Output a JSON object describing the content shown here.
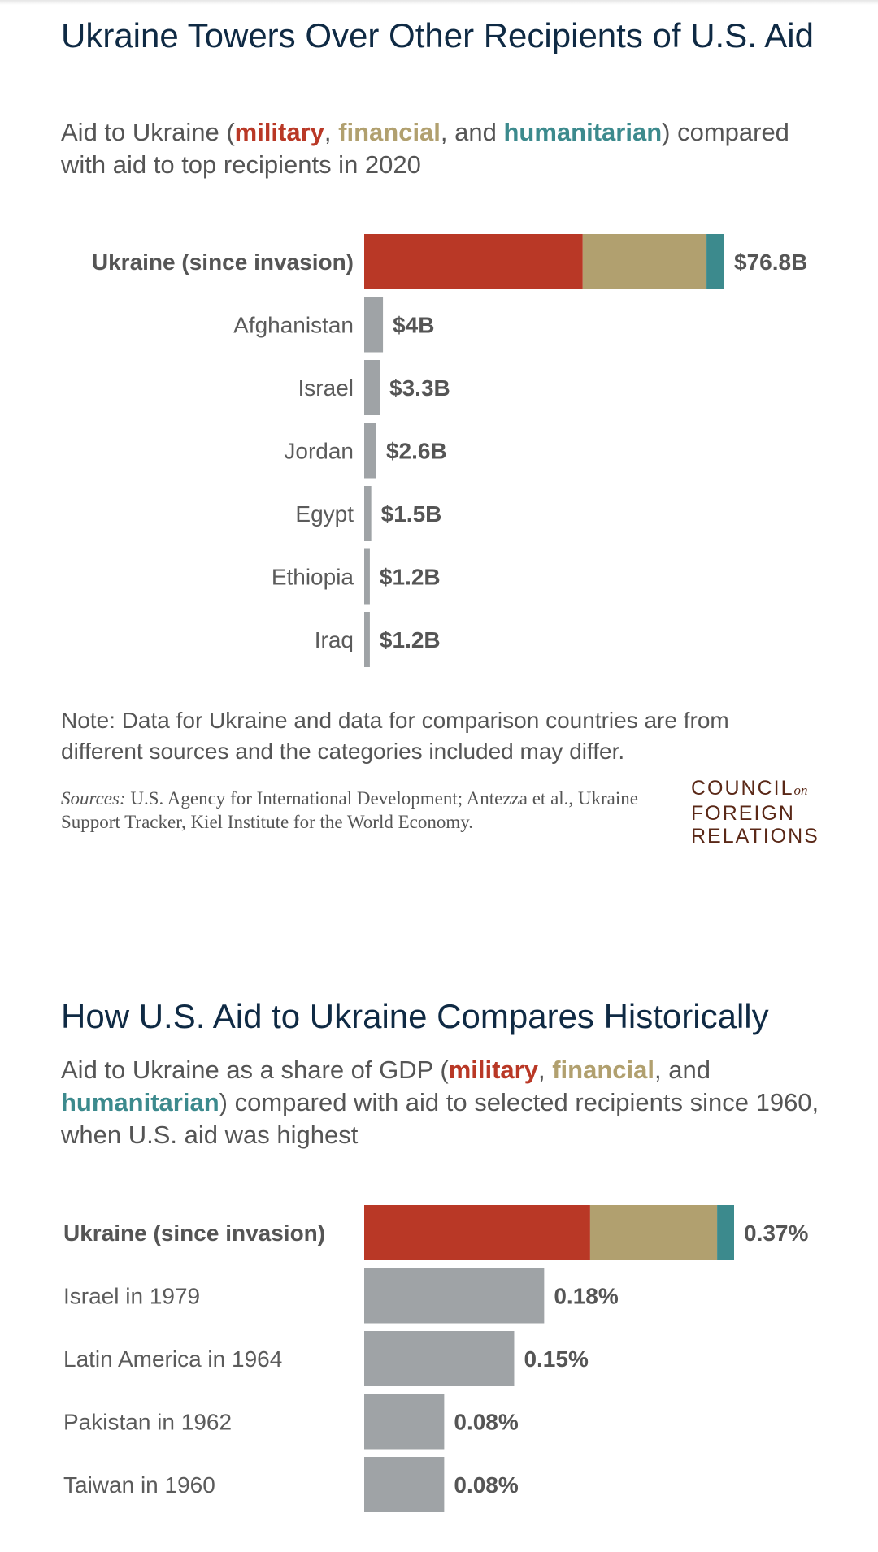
{
  "colors": {
    "military": "#b93826",
    "financial": "#b1a06f",
    "humanitarian": "#3c8a8d",
    "gray": "#9fa3a6",
    "title": "#0f2a44",
    "logo": "#5a2817"
  },
  "panel1": {
    "title": "Ukraine Towers Over Other Recipients of U.S. Aid",
    "subtitle": {
      "pre": "Aid to Ukraine (",
      "military": "military",
      "sep1": ", ",
      "financial": "financial",
      "sep2": ", and ",
      "humanitarian": "humanitarian",
      "post": ") compared with aid to top recipients in 2020"
    },
    "note": "Note: Data for Ukraine and data for comparison countries are from different sources and the categories included may differ.",
    "sources_label": "Sources:",
    "sources_text": "U.S. Agency for International Development; Antezza et al., Ukraine Support Tracker, Kiel Institute for the World Economy.",
    "logo": {
      "line1": "COUNCIL",
      "on": "on",
      "line2": "FOREIGN",
      "line3": "RELATIONS"
    }
  },
  "panel2": {
    "title": "How U.S. Aid to Ukraine Compares Historically",
    "subtitle": {
      "pre": "Aid to Ukraine as a share of GDP (",
      "military": "military",
      "sep1": ", ",
      "financial": "financial",
      "sep2": ", and ",
      "humanitarian": "humanitarian",
      "post": ") compared with aid to selected recipients since 1960, when U.S. aid was highest"
    }
  },
  "chart_data": [
    {
      "type": "bar",
      "orientation": "horizontal",
      "stacked": true,
      "title": "Ukraine Towers Over Other Recipients of U.S. Aid",
      "unit": "billion USD",
      "categories": [
        "Ukraine (since invasion)",
        "Afghanistan",
        "Israel",
        "Jordan",
        "Egypt",
        "Ethiopia",
        "Iraq"
      ],
      "values": [
        76.8,
        4,
        3.3,
        2.6,
        1.5,
        1.2,
        1.2
      ],
      "labels": [
        "$76.8B",
        "$4B",
        "$3.3B",
        "$2.6B",
        "$1.5B",
        "$1.2B",
        "$1.2B"
      ],
      "highlight_index": 0,
      "highlight_breakdown": [
        {
          "name": "military",
          "value": 46.6
        },
        {
          "name": "financial",
          "value": 26.4
        },
        {
          "name": "humanitarian",
          "value": 3.8
        }
      ],
      "xlim": [
        0,
        76.8
      ]
    },
    {
      "type": "bar",
      "orientation": "horizontal",
      "stacked": true,
      "title": "How U.S. Aid to Ukraine Compares Historically",
      "unit": "percent of GDP",
      "categories": [
        "Ukraine (since invasion)",
        "Israel in 1979",
        "Latin America in 1964",
        "Pakistan in 1962",
        "Taiwan in 1960"
      ],
      "values": [
        0.37,
        0.18,
        0.15,
        0.08,
        0.08
      ],
      "labels": [
        "0.37%",
        "0.18%",
        "0.15%",
        "0.08%",
        "0.08%"
      ],
      "highlight_index": 0,
      "highlight_breakdown": [
        {
          "name": "military",
          "value": 0.226
        },
        {
          "name": "financial",
          "value": 0.127
        },
        {
          "name": "humanitarian",
          "value": 0.017
        }
      ],
      "xlim": [
        0,
        0.37
      ]
    }
  ]
}
